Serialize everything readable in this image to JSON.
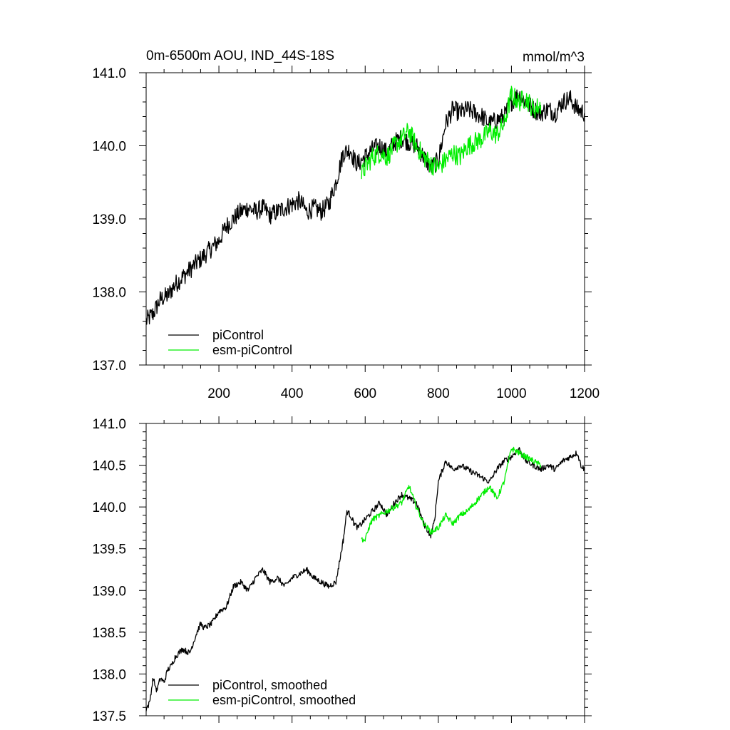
{
  "header": {
    "title_left": "0m-6500m AOU, IND_44S-18S",
    "title_right": "mmol/m^3"
  },
  "colors": {
    "piControl": "#000000",
    "esm_piControl": "#00ee00"
  },
  "chart_data": [
    {
      "type": "line",
      "panel": "top",
      "xlim": [
        1,
        1200
      ],
      "ylim": [
        137.0,
        141.0
      ],
      "xticks": [
        200,
        400,
        600,
        800,
        1000,
        1200
      ],
      "xtick_labels": [
        "200",
        "400",
        "600",
        "800",
        "1000",
        "1200"
      ],
      "yticks": [
        137.0,
        138.0,
        139.0,
        140.0,
        141.0
      ],
      "ytick_labels": [
        "137.0",
        "138.0",
        "139.0",
        "140.0",
        "141.0"
      ],
      "legend_position": "bottom-left",
      "series": [
        {
          "name": "piControl",
          "color_key": "piControl",
          "noise": 0.13,
          "x": [
            1,
            20,
            40,
            60,
            80,
            100,
            120,
            140,
            160,
            180,
            200,
            220,
            240,
            260,
            280,
            300,
            320,
            340,
            360,
            380,
            400,
            420,
            440,
            460,
            480,
            500,
            520,
            540,
            560,
            570,
            580,
            600,
            620,
            640,
            660,
            680,
            700,
            720,
            740,
            760,
            780,
            800,
            820,
            840,
            860,
            880,
            900,
            920,
            940,
            960,
            980,
            1000,
            1020,
            1040,
            1060,
            1080,
            1100,
            1120,
            1140,
            1160,
            1180,
            1200
          ],
          "y": [
            137.6,
            137.7,
            137.9,
            137.95,
            138.1,
            138.2,
            138.3,
            138.4,
            138.5,
            138.6,
            138.7,
            138.9,
            139.0,
            139.1,
            139.15,
            139.1,
            139.15,
            139.05,
            139.1,
            139.15,
            139.2,
            139.25,
            139.1,
            139.15,
            139.1,
            139.2,
            139.5,
            139.9,
            139.95,
            139.8,
            139.75,
            139.85,
            139.95,
            140.0,
            139.9,
            140.05,
            140.1,
            140.05,
            140.0,
            139.85,
            139.7,
            139.8,
            140.3,
            140.5,
            140.45,
            140.5,
            140.45,
            140.4,
            140.3,
            140.35,
            140.4,
            140.6,
            140.7,
            140.6,
            140.5,
            140.45,
            140.5,
            140.45,
            140.6,
            140.65,
            140.5,
            140.45
          ]
        },
        {
          "name": "esm-piControl",
          "color_key": "esm_piControl",
          "noise": 0.14,
          "x": [
            590,
            600,
            620,
            640,
            660,
            680,
            700,
            720,
            740,
            760,
            780,
            800,
            820,
            840,
            860,
            880,
            900,
            920,
            940,
            960,
            980,
            1000,
            1020,
            1040,
            1060,
            1080
          ],
          "y": [
            139.6,
            139.7,
            139.85,
            139.9,
            139.85,
            140.0,
            140.1,
            140.2,
            140.0,
            139.85,
            139.75,
            139.7,
            139.8,
            139.9,
            139.85,
            140.0,
            140.05,
            140.1,
            140.2,
            140.15,
            140.3,
            140.7,
            140.6,
            140.65,
            140.5,
            140.55
          ]
        }
      ]
    },
    {
      "type": "line",
      "panel": "bottom",
      "xlim": [
        1,
        1200
      ],
      "ylim": [
        137.5,
        141.0
      ],
      "yticks": [
        137.5,
        138.0,
        138.5,
        139.0,
        139.5,
        140.0,
        140.5,
        141.0
      ],
      "ytick_labels": [
        "137.5",
        "138.0",
        "138.5",
        "139.0",
        "139.5",
        "140.0",
        "140.5",
        "141.0"
      ],
      "legend_position": "bottom-left",
      "series": [
        {
          "name": "piControl, smoothed",
          "color_key": "piControl",
          "noise": 0.035,
          "x": [
            1,
            10,
            20,
            30,
            40,
            50,
            60,
            70,
            80,
            100,
            120,
            140,
            150,
            160,
            180,
            200,
            220,
            240,
            260,
            280,
            300,
            320,
            340,
            360,
            380,
            400,
            420,
            440,
            460,
            480,
            500,
            520,
            540,
            550,
            560,
            570,
            580,
            600,
            620,
            640,
            660,
            680,
            700,
            720,
            740,
            760,
            780,
            790,
            800,
            820,
            840,
            860,
            880,
            900,
            920,
            940,
            960,
            980,
            1000,
            1020,
            1040,
            1060,
            1080,
            1100,
            1120,
            1140,
            1160,
            1180,
            1190,
            1200
          ],
          "y": [
            137.58,
            137.65,
            137.95,
            137.8,
            137.95,
            137.9,
            138.05,
            138.1,
            138.2,
            138.3,
            138.25,
            138.5,
            138.6,
            138.55,
            138.6,
            138.75,
            138.8,
            139.05,
            139.1,
            139.0,
            139.15,
            139.25,
            139.1,
            139.15,
            139.05,
            139.15,
            139.2,
            139.25,
            139.15,
            139.1,
            139.05,
            139.1,
            139.6,
            139.95,
            139.9,
            139.8,
            139.75,
            139.85,
            139.95,
            140.05,
            139.9,
            140.05,
            140.15,
            140.1,
            140.05,
            139.8,
            139.65,
            139.85,
            140.3,
            140.55,
            140.45,
            140.5,
            140.45,
            140.4,
            140.35,
            140.3,
            140.45,
            140.55,
            140.6,
            140.7,
            140.55,
            140.5,
            140.45,
            140.5,
            140.45,
            140.55,
            140.6,
            140.65,
            140.5,
            140.45
          ]
        },
        {
          "name": "esm-piControl, smoothed",
          "color_key": "esm_piControl",
          "noise": 0.035,
          "x": [
            590,
            600,
            610,
            620,
            640,
            660,
            680,
            700,
            720,
            740,
            760,
            780,
            800,
            820,
            840,
            860,
            880,
            900,
            920,
            940,
            960,
            980,
            1000,
            1020,
            1040,
            1060,
            1080
          ],
          "y": [
            139.62,
            139.6,
            139.75,
            139.85,
            139.9,
            139.95,
            140.0,
            140.05,
            140.25,
            140.0,
            139.8,
            139.7,
            139.75,
            139.9,
            139.8,
            139.9,
            139.95,
            140.05,
            140.15,
            140.25,
            140.1,
            140.3,
            140.7,
            140.65,
            140.6,
            140.55,
            140.5
          ]
        }
      ]
    }
  ]
}
